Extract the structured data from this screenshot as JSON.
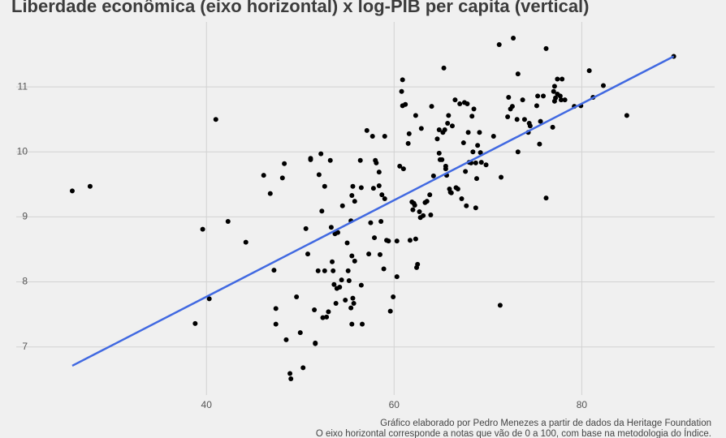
{
  "chart_data": {
    "type": "scatter",
    "title": "Liberdade econômica (eixo horizontal) x log-PIB per capita (vertical)",
    "caption": [
      "Gráfico elaborado por Pedro Menezes a partir de dados da Heritage Foundation",
      "O eixo horizontal corresponde a notas que vão de 0 a 100, com base na metodologia do Índice."
    ],
    "x": [
      25.7,
      27.6,
      39.6,
      40.3,
      38.8,
      41.0,
      42.3,
      44.2,
      46.1,
      46.8,
      47.2,
      47.4,
      47.4,
      48.1,
      48.3,
      48.5,
      48.9,
      49.0,
      50.0,
      49.6,
      50.3,
      50.6,
      50.8,
      51.1,
      51.1,
      51.5,
      51.6,
      51.6,
      51.9,
      52.0,
      52.2,
      52.3,
      52.4,
      52.6,
      52.6,
      52.8,
      53.0,
      53.2,
      53.3,
      53.4,
      53.5,
      53.6,
      53.7,
      53.8,
      53.9,
      54.0,
      54.2,
      54.4,
      54.5,
      54.8,
      55.0,
      55.1,
      55.2,
      55.4,
      55.4,
      55.5,
      55.5,
      55.5,
      55.6,
      55.6,
      55.7,
      55.8,
      55.8,
      56.4,
      56.5,
      56.5,
      56.6,
      57.1,
      57.3,
      57.5,
      57.7,
      57.8,
      57.9,
      58.0,
      58.1,
      58.4,
      58.4,
      58.5,
      58.6,
      58.7,
      58.9,
      59.0,
      59.0,
      59.2,
      59.4,
      59.6,
      59.9,
      60.3,
      60.3,
      60.6,
      60.8,
      60.9,
      60.9,
      61.0,
      61.2,
      61.5,
      61.6,
      61.7,
      61.9,
      62.0,
      62.1,
      62.2,
      62.3,
      62.3,
      62.4,
      62.5,
      62.7,
      62.8,
      62.9,
      63.1,
      63.3,
      63.5,
      63.8,
      63.9,
      64.0,
      64.2,
      64.6,
      64.8,
      64.8,
      64.9,
      65.1,
      65.2,
      65.3,
      65.4,
      65.5,
      65.5,
      65.6,
      65.7,
      65.8,
      65.9,
      66.0,
      66.1,
      66.2,
      66.5,
      66.6,
      66.8,
      67.0,
      67.2,
      67.4,
      67.5,
      67.6,
      67.7,
      67.8,
      67.9,
      68.0,
      68.2,
      68.3,
      68.4,
      68.5,
      68.7,
      68.7,
      68.8,
      68.9,
      69.1,
      69.2,
      69.3,
      69.8,
      70.6,
      71.2,
      71.3,
      71.4,
      72.1,
      72.2,
      72.4,
      72.6,
      72.7,
      73.1,
      73.2,
      73.2,
      73.7,
      73.9,
      74.3,
      74.4,
      74.5,
      75.2,
      75.3,
      75.5,
      75.6,
      75.9,
      76.2,
      76.2,
      76.9,
      77.0,
      77.1,
      77.1,
      77.2,
      77.4,
      77.4,
      77.7,
      77.8,
      77.9,
      78.2,
      79.2,
      79.9,
      80.8,
      81.2,
      82.3,
      84.8,
      89.8
    ],
    "values": [
      9.4,
      9.47,
      8.81,
      7.74,
      7.36,
      10.5,
      8.93,
      8.61,
      9.64,
      9.36,
      8.18,
      7.59,
      7.35,
      9.6,
      9.82,
      7.11,
      6.59,
      6.51,
      7.22,
      7.77,
      6.68,
      8.82,
      8.43,
      9.9,
      9.88,
      7.57,
      7.06,
      7.05,
      8.17,
      9.65,
      9.97,
      9.09,
      7.45,
      9.47,
      8.17,
      7.46,
      7.54,
      9.87,
      8.84,
      8.31,
      8.17,
      7.96,
      8.74,
      7.67,
      7.9,
      8.76,
      7.92,
      8.03,
      9.17,
      7.72,
      8.6,
      8.17,
      8.02,
      8.94,
      7.6,
      9.33,
      8.4,
      7.35,
      9.47,
      7.75,
      7.67,
      8.32,
      9.24,
      9.87,
      7.95,
      9.45,
      7.35,
      10.33,
      8.43,
      8.91,
      10.24,
      9.44,
      8.68,
      9.87,
      9.83,
      9.69,
      9.48,
      8.42,
      8.93,
      9.34,
      8.2,
      10.24,
      9.28,
      8.64,
      8.63,
      7.55,
      7.77,
      8.63,
      8.08,
      9.78,
      10.93,
      11.11,
      10.71,
      9.74,
      10.73,
      10.13,
      10.28,
      8.64,
      9.23,
      9.11,
      9.21,
      9.18,
      10.56,
      8.66,
      8.22,
      8.27,
      9.08,
      8.99,
      10.36,
      9.02,
      9.22,
      9.24,
      9.34,
      9.03,
      10.7,
      9.63,
      10.2,
      9.98,
      10.34,
      9.88,
      9.88,
      10.3,
      11.29,
      10.34,
      9.74,
      9.78,
      9.64,
      10.44,
      10.56,
      9.43,
      9.38,
      9.37,
      10.4,
      10.8,
      9.45,
      9.43,
      10.74,
      9.28,
      10.14,
      10.76,
      9.7,
      9.17,
      10.74,
      10.3,
      9.84,
      9.83,
      10.55,
      10.0,
      10.66,
      9.83,
      9.14,
      9.59,
      10.1,
      10.3,
      9.99,
      9.84,
      9.8,
      10.24,
      11.65,
      7.64,
      9.61,
      10.54,
      10.84,
      10.66,
      10.7,
      11.75,
      10.5,
      10.0,
      11.2,
      10.8,
      10.5,
      10.3,
      10.44,
      10.4,
      10.71,
      10.86,
      10.12,
      10.47,
      10.86,
      11.59,
      9.29,
      10.38,
      10.93,
      11.01,
      10.78,
      10.83,
      10.89,
      11.12,
      10.86,
      10.8,
      11.12,
      10.8,
      10.7,
      10.71,
      11.25,
      10.84,
      11.02,
      10.56,
      11.47
    ],
    "color": "#000000",
    "trend": {
      "x": [
        25.7,
        89.8
      ],
      "values": [
        6.71,
        11.47
      ],
      "color": "#4169e1"
    },
    "xlim": [
      22.5,
      92.6
    ],
    "ylim": [
      6.26,
      12.0
    ],
    "xticks": [
      40,
      60,
      80
    ],
    "yticks": [
      7,
      8,
      9,
      10,
      11
    ],
    "grid": true
  }
}
